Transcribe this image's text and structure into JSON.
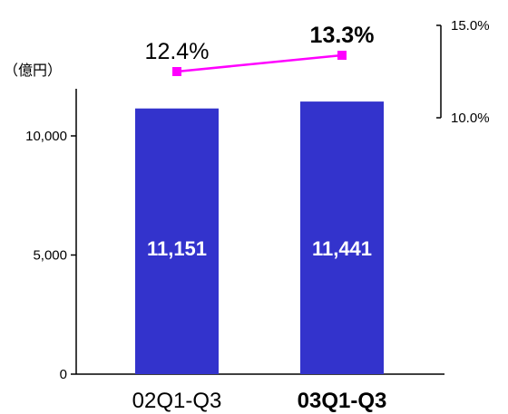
{
  "chart_data": {
    "type": "bar",
    "unit_label": "（億円）",
    "categories": [
      "02Q1-Q3",
      "03Q1-Q3"
    ],
    "category_bold": [
      false,
      true
    ],
    "values": [
      11151,
      11441
    ],
    "value_labels": [
      "11,151",
      "11,441"
    ],
    "ylim": [
      0,
      11000
    ],
    "yticks": [
      {
        "value": 0,
        "label": "0"
      },
      {
        "value": 5000,
        "label": "5,000"
      },
      {
        "value": 10000,
        "label": "10,000"
      }
    ],
    "bar_color": "#3333cc",
    "secondary": {
      "type": "line",
      "values": [
        12.4,
        13.3
      ],
      "labels": [
        "12.4%",
        "13.3%"
      ],
      "label_bold": [
        false,
        true
      ],
      "ylim": [
        10.0,
        15.0
      ],
      "ticks": [
        {
          "value": 15.0,
          "label": "15.0%"
        },
        {
          "value": 10.0,
          "label": "10.0%"
        }
      ],
      "color": "#ff00ff"
    }
  }
}
